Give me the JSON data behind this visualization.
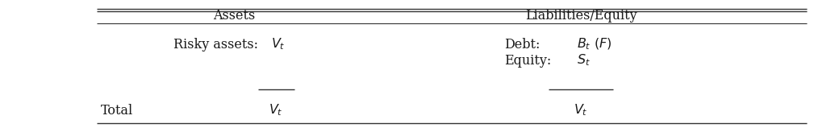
{
  "bg_color": "#ffffff",
  "line_color": "#333333",
  "text_color": "#1a1a1a",
  "header_assets": "Assets",
  "header_liab": "Liabilities/Equity",
  "row1_label": "Risky assets:  ",
  "row1_value": "$V_t$",
  "debt_label": "Debt:     ",
  "debt_value": "$B_t\\ (F)$",
  "equity_label": "Equity:   ",
  "equity_value": "$S_t$",
  "total_label": "Total",
  "total_assets_value": "$V_t$",
  "total_liab_value": "$V_t$",
  "font_size": 11.5
}
